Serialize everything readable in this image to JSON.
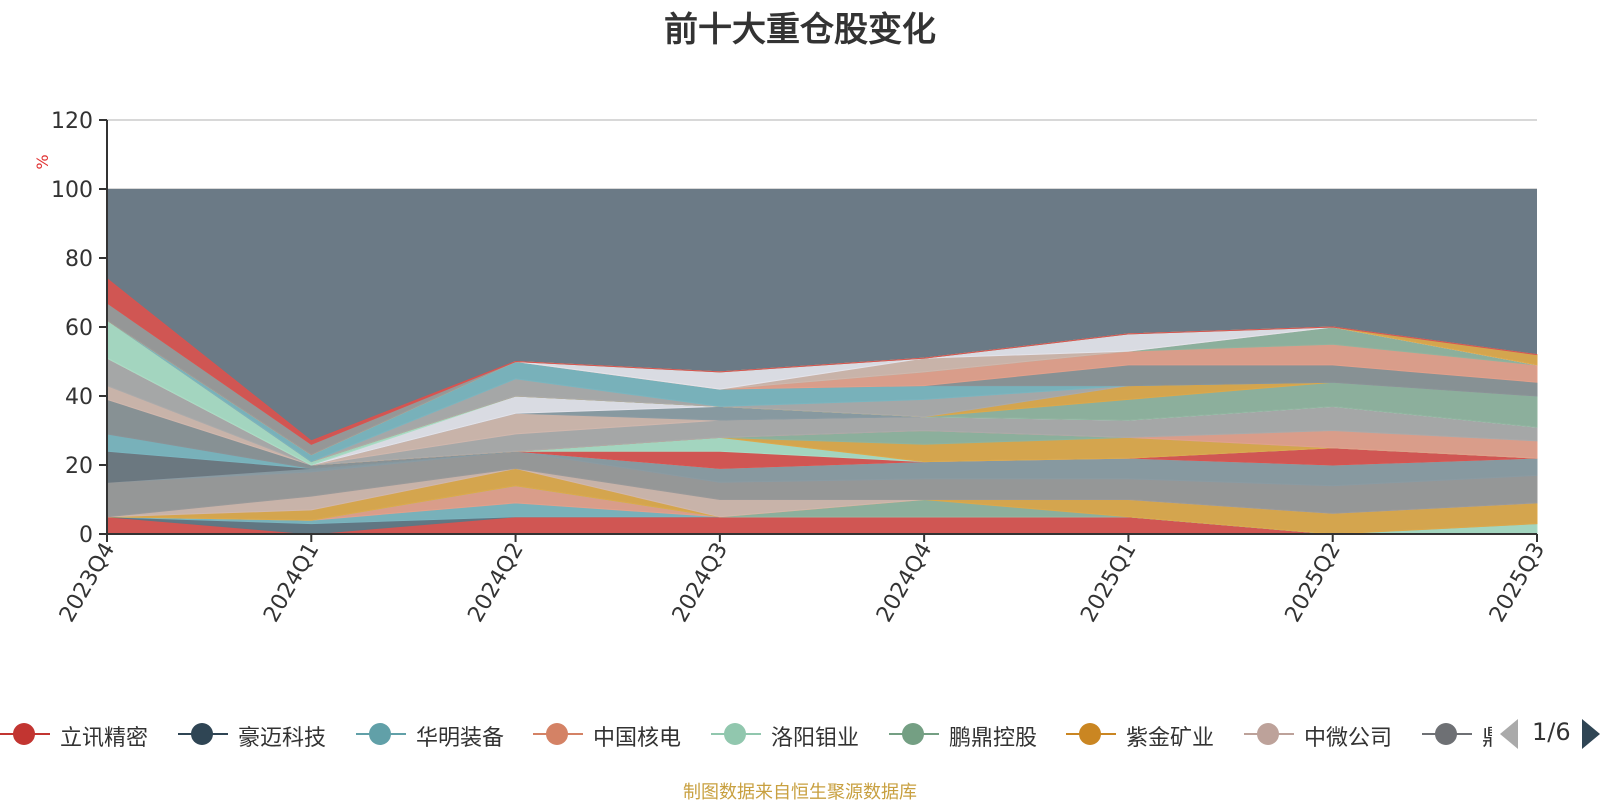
{
  "chart_data": {
    "type": "area",
    "title": "前十大重仓股变化",
    "ylabel": "%",
    "ylim": [
      0,
      120
    ],
    "yticks": [
      0,
      20,
      40,
      60,
      80,
      100,
      120
    ],
    "x": [
      "2023Q4",
      "2024Q1",
      "2024Q2",
      "2024Q3",
      "2024Q4",
      "2025Q1",
      "2025Q2",
      "2025Q3"
    ],
    "background_total": 100,
    "series": [
      {
        "name": "立讯精密",
        "color": "#d9534f",
        "values": [
          5,
          0,
          5,
          5,
          5,
          5,
          0,
          0
        ]
      },
      {
        "name": "",
        "color": "#5f7683",
        "values": [
          0,
          3,
          0,
          0,
          0,
          0,
          0,
          0
        ]
      },
      {
        "name": "华明装备",
        "color": "#7ab5bf",
        "values": [
          0,
          1,
          4,
          0,
          0,
          0,
          0,
          0
        ]
      },
      {
        "name": "",
        "color": "#e3a08b",
        "values": [
          0,
          0,
          5,
          0,
          0,
          0,
          0,
          0
        ]
      },
      {
        "name": "洛阳钼业",
        "color": "#a8dcc4",
        "values": [
          0,
          0,
          0,
          0,
          0,
          0,
          0,
          3
        ]
      },
      {
        "name": "",
        "color": "#8fb39e",
        "values": [
          0,
          0,
          0,
          0,
          5,
          0,
          0,
          0
        ]
      },
      {
        "name": "紫金矿业",
        "color": "#dda84a",
        "values": [
          0,
          3,
          5,
          0,
          0,
          5,
          6,
          6
        ]
      },
      {
        "name": "",
        "color": "#d0b7ad",
        "values": [
          0,
          4,
          0,
          5,
          0,
          0,
          0,
          0
        ]
      },
      {
        "name": "",
        "color": "#999999",
        "values": [
          10,
          7,
          5,
          5,
          6,
          6,
          8,
          8
        ]
      },
      {
        "name": "",
        "color": "#8a9ba3",
        "values": [
          0,
          1,
          0,
          4,
          5,
          6,
          6,
          5
        ]
      },
      {
        "name": "",
        "color": "#6b7780",
        "values": [
          9,
          0,
          0,
          0,
          0,
          0,
          0,
          0
        ]
      },
      {
        "name": "",
        "color": "#7ab5bf",
        "values": [
          5,
          0,
          0,
          0,
          0,
          0,
          0,
          0
        ]
      },
      {
        "name": "",
        "color": "#8a9296",
        "values": [
          10,
          1,
          0,
          0,
          0,
          0,
          0,
          0
        ]
      },
      {
        "name": "",
        "color": "#d0b7ad",
        "values": [
          4,
          0,
          0,
          0,
          0,
          0,
          0,
          0
        ]
      },
      {
        "name": "",
        "color": "#aaaaaa",
        "values": [
          8,
          0,
          0,
          0,
          0,
          0,
          0,
          0
        ]
      },
      {
        "name": "",
        "color": "#d9534f",
        "values": [
          0,
          0,
          0,
          5,
          0,
          0,
          5,
          0
        ]
      },
      {
        "name": "",
        "color": "#a8dcc4",
        "values": [
          0,
          0,
          0,
          4,
          0,
          0,
          0,
          0
        ]
      },
      {
        "name": "",
        "color": "#dda84a",
        "values": [
          0,
          0,
          0,
          0,
          5,
          6,
          0,
          0
        ]
      },
      {
        "name": "",
        "color": "#8fb39e",
        "values": [
          0,
          0,
          0,
          0,
          4,
          0,
          0,
          0
        ]
      },
      {
        "name": "",
        "color": "#e3a08b",
        "values": [
          0,
          0,
          0,
          0,
          0,
          0,
          5,
          5
        ]
      },
      {
        "name": "",
        "color": "#aaaaaa",
        "values": [
          0,
          0,
          5,
          5,
          4,
          5,
          7,
          4
        ]
      },
      {
        "name": "",
        "color": "#d0b7ad",
        "values": [
          0,
          0,
          6,
          0,
          0,
          0,
          0,
          0
        ]
      },
      {
        "name": "",
        "color": "#8a9ba3",
        "values": [
          0,
          0,
          0,
          4,
          0,
          0,
          0,
          0
        ]
      },
      {
        "name": "",
        "color": "#e3e3ea",
        "values": [
          0,
          0,
          5,
          0,
          0,
          0,
          0,
          0
        ]
      },
      {
        "name": "",
        "color": "#a8dcc4",
        "values": [
          11,
          1,
          0,
          0,
          0,
          0,
          0,
          0
        ]
      },
      {
        "name": "",
        "color": "#8fb39e",
        "values": [
          0,
          0,
          0,
          0,
          0,
          6,
          7,
          9
        ]
      },
      {
        "name": "",
        "color": "#dda84a",
        "values": [
          0,
          0,
          0,
          0,
          0,
          4,
          0,
          0
        ]
      },
      {
        "name": "",
        "color": "#aaaaaa",
        "values": [
          0,
          0,
          5,
          0,
          5,
          0,
          0,
          0
        ]
      },
      {
        "name": "",
        "color": "#7ab5bf",
        "values": [
          0,
          2,
          5,
          5,
          4,
          0,
          0,
          0
        ]
      },
      {
        "name": "",
        "color": "#8a9296",
        "values": [
          0,
          0,
          0,
          0,
          0,
          6,
          5,
          4
        ]
      },
      {
        "name": "",
        "color": "#e3a08b",
        "values": [
          0,
          0,
          0,
          0,
          4,
          4,
          6,
          5
        ]
      },
      {
        "name": "",
        "color": "#8fb39e",
        "values": [
          0,
          0,
          0,
          0,
          0,
          0,
          5,
          0
        ]
      },
      {
        "name": "",
        "color": "#d0b7ad",
        "values": [
          0,
          0,
          0,
          0,
          4,
          0,
          0,
          0
        ]
      },
      {
        "name": "",
        "color": "#e3e3ea",
        "values": [
          0,
          0,
          0,
          5,
          0,
          5,
          0,
          0
        ]
      },
      {
        "name": "",
        "color": "#dda84a",
        "values": [
          0,
          0,
          0,
          0,
          0,
          0,
          0,
          3
        ]
      },
      {
        "name": "",
        "color": "#999999",
        "values": [
          5,
          3,
          0,
          0,
          0,
          0,
          0,
          0
        ]
      },
      {
        "name": "",
        "color": "#d9534f",
        "values": [
          7,
          1,
          0,
          0,
          0,
          0,
          0,
          0
        ]
      }
    ],
    "legend_position": "bottom",
    "legend": {
      "entries": [
        {
          "name": "立讯精密",
          "color": "#c23531"
        },
        {
          "name": "豪迈科技",
          "color": "#2f4554"
        },
        {
          "name": "华明装备",
          "color": "#61a0a8"
        },
        {
          "name": "中国核电",
          "color": "#d48265"
        },
        {
          "name": "洛阳钼业",
          "color": "#91c7ae"
        },
        {
          "name": "鹏鼎控股",
          "color": "#749f83"
        },
        {
          "name": "紫金矿业",
          "color": "#ca8622"
        },
        {
          "name": "中微公司",
          "color": "#bda29a"
        },
        {
          "name": "鼎",
          "color": "#6e7074"
        }
      ],
      "page": "1/6"
    },
    "source_note": "制图数据来自恒生聚源数据库"
  },
  "colors": {
    "background_area": "#6b7a86",
    "axis": "#333333",
    "grid": "#cccccc",
    "ylabel": "#e03030"
  }
}
